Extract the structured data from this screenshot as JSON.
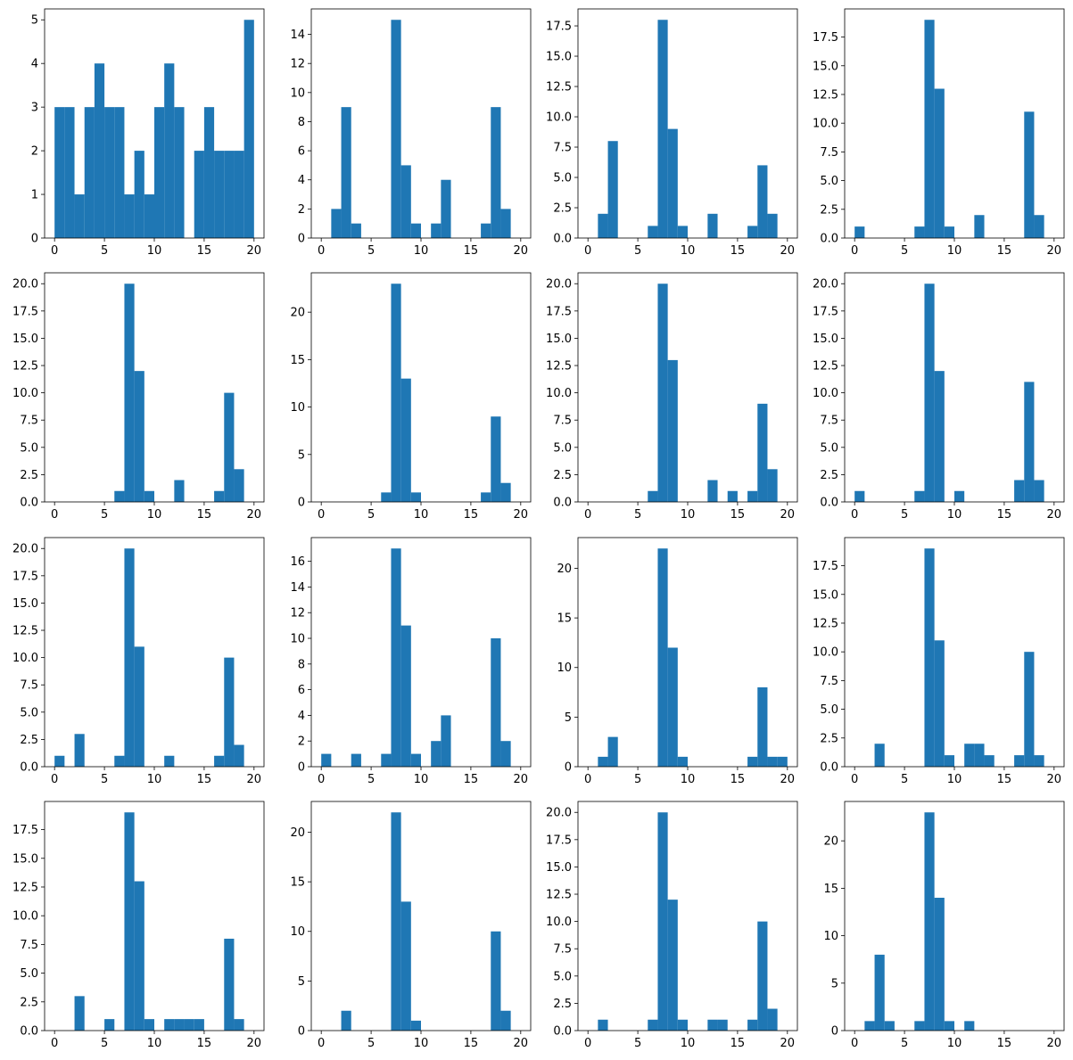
{
  "colors": {
    "bar": "#1f77b4",
    "axis": "#000000",
    "background": "#ffffff"
  },
  "chart_data": [
    {
      "type": "bar",
      "bins": {
        "start": 0,
        "width": 1,
        "count": 20
      },
      "values": [
        3,
        3,
        1,
        3,
        4,
        3,
        3,
        1,
        2,
        1,
        3,
        4,
        3,
        0,
        2,
        3,
        2,
        2,
        2,
        5
      ],
      "xlim": [
        -1,
        21
      ],
      "ylim": [
        0,
        5.25
      ],
      "xticks": [
        0,
        5,
        10,
        15,
        20
      ],
      "yticks": [
        0,
        1,
        2,
        3,
        4,
        5
      ],
      "xtick_labels": [
        "0",
        "5",
        "10",
        "15",
        "20"
      ],
      "ytick_labels": [
        "0",
        "1",
        "2",
        "3",
        "4",
        "5"
      ]
    },
    {
      "type": "bar",
      "bins": {
        "start": 0,
        "width": 1,
        "count": 20
      },
      "values": [
        0,
        2,
        9,
        1,
        0,
        0,
        0,
        15,
        5,
        1,
        0,
        1,
        4,
        0,
        0,
        0,
        1,
        9,
        2,
        0
      ],
      "xlim": [
        -1,
        21
      ],
      "ylim": [
        0,
        15.75
      ],
      "xticks": [
        0,
        5,
        10,
        15,
        20
      ],
      "yticks": [
        0,
        2,
        4,
        6,
        8,
        10,
        12,
        14
      ],
      "xtick_labels": [
        "0",
        "5",
        "10",
        "15",
        "20"
      ],
      "ytick_labels": [
        "0",
        "2",
        "4",
        "6",
        "8",
        "10",
        "12",
        "14"
      ]
    },
    {
      "type": "bar",
      "bins": {
        "start": 0,
        "width": 1,
        "count": 20
      },
      "values": [
        0,
        2,
        8,
        0,
        0,
        0,
        1,
        18,
        9,
        1,
        0,
        0,
        2,
        0,
        0,
        0,
        1,
        6,
        2,
        0
      ],
      "xlim": [
        -1,
        21
      ],
      "ylim": [
        0,
        18.9
      ],
      "xticks": [
        0,
        5,
        10,
        15,
        20
      ],
      "yticks": [
        0,
        2.5,
        5,
        7.5,
        10,
        12.5,
        15,
        17.5
      ],
      "xtick_labels": [
        "0",
        "5",
        "10",
        "15",
        "20"
      ],
      "ytick_labels": [
        "0.0",
        "2.5",
        "5.0",
        "7.5",
        "10.0",
        "12.5",
        "15.0",
        "17.5"
      ]
    },
    {
      "type": "bar",
      "bins": {
        "start": 0,
        "width": 1,
        "count": 20
      },
      "values": [
        1,
        0,
        0,
        0,
        0,
        0,
        1,
        19,
        13,
        1,
        0,
        0,
        2,
        0,
        0,
        0,
        0,
        11,
        2,
        0
      ],
      "xlim": [
        -1,
        21
      ],
      "ylim": [
        0,
        19.95
      ],
      "xticks": [
        0,
        5,
        10,
        15,
        20
      ],
      "yticks": [
        0,
        2.5,
        5,
        7.5,
        10,
        12.5,
        15,
        17.5
      ],
      "xtick_labels": [
        "0",
        "5",
        "10",
        "15",
        "20"
      ],
      "ytick_labels": [
        "0.0",
        "2.5",
        "5.0",
        "7.5",
        "10.0",
        "12.5",
        "15.0",
        "17.5"
      ]
    },
    {
      "type": "bar",
      "bins": {
        "start": 0,
        "width": 1,
        "count": 20
      },
      "values": [
        0,
        0,
        0,
        0,
        0,
        0,
        1,
        20,
        12,
        1,
        0,
        0,
        2,
        0,
        0,
        0,
        1,
        10,
        3,
        0
      ],
      "xlim": [
        -1,
        21
      ],
      "ylim": [
        0,
        21
      ],
      "xticks": [
        0,
        5,
        10,
        15,
        20
      ],
      "yticks": [
        0,
        2.5,
        5,
        7.5,
        10,
        12.5,
        15,
        17.5,
        20
      ],
      "xtick_labels": [
        "0",
        "5",
        "10",
        "15",
        "20"
      ],
      "ytick_labels": [
        "0.0",
        "2.5",
        "5.0",
        "7.5",
        "10.0",
        "12.5",
        "15.0",
        "17.5",
        "20.0"
      ]
    },
    {
      "type": "bar",
      "bins": {
        "start": 0,
        "width": 1,
        "count": 20
      },
      "values": [
        0,
        0,
        0,
        0,
        0,
        0,
        1,
        23,
        13,
        1,
        0,
        0,
        0,
        0,
        0,
        0,
        1,
        9,
        2,
        0
      ],
      "xlim": [
        -1,
        21
      ],
      "ylim": [
        0,
        24.15
      ],
      "xticks": [
        0,
        5,
        10,
        15,
        20
      ],
      "yticks": [
        0,
        5,
        10,
        15,
        20
      ],
      "xtick_labels": [
        "0",
        "5",
        "10",
        "15",
        "20"
      ],
      "ytick_labels": [
        "0",
        "5",
        "10",
        "15",
        "20"
      ]
    },
    {
      "type": "bar",
      "bins": {
        "start": 0,
        "width": 1,
        "count": 20
      },
      "values": [
        0,
        0,
        0,
        0,
        0,
        0,
        1,
        20,
        13,
        0,
        0,
        0,
        2,
        0,
        1,
        0,
        1,
        9,
        3,
        0
      ],
      "xlim": [
        -1,
        21
      ],
      "ylim": [
        0,
        21
      ],
      "xticks": [
        0,
        5,
        10,
        15,
        20
      ],
      "yticks": [
        0,
        2.5,
        5,
        7.5,
        10,
        12.5,
        15,
        17.5,
        20
      ],
      "xtick_labels": [
        "0",
        "5",
        "10",
        "15",
        "20"
      ],
      "ytick_labels": [
        "0.0",
        "2.5",
        "5.0",
        "7.5",
        "10.0",
        "12.5",
        "15.0",
        "17.5",
        "20.0"
      ]
    },
    {
      "type": "bar",
      "bins": {
        "start": 0,
        "width": 1,
        "count": 20
      },
      "values": [
        1,
        0,
        0,
        0,
        0,
        0,
        1,
        20,
        12,
        0,
        1,
        0,
        0,
        0,
        0,
        0,
        2,
        11,
        2,
        0
      ],
      "xlim": [
        -1,
        21
      ],
      "ylim": [
        0,
        21
      ],
      "xticks": [
        0,
        5,
        10,
        15,
        20
      ],
      "yticks": [
        0,
        2.5,
        5,
        7.5,
        10,
        12.5,
        15,
        17.5,
        20
      ],
      "xtick_labels": [
        "0",
        "5",
        "10",
        "15",
        "20"
      ],
      "ytick_labels": [
        "0.0",
        "2.5",
        "5.0",
        "7.5",
        "10.0",
        "12.5",
        "15.0",
        "17.5",
        "20.0"
      ]
    },
    {
      "type": "bar",
      "bins": {
        "start": 0,
        "width": 1,
        "count": 20
      },
      "values": [
        1,
        0,
        3,
        0,
        0,
        0,
        1,
        20,
        11,
        0,
        0,
        1,
        0,
        0,
        0,
        0,
        1,
        10,
        2,
        0
      ],
      "xlim": [
        -1,
        21
      ],
      "ylim": [
        0,
        21
      ],
      "xticks": [
        0,
        5,
        10,
        15,
        20
      ],
      "yticks": [
        0,
        2.5,
        5,
        7.5,
        10,
        12.5,
        15,
        17.5,
        20
      ],
      "xtick_labels": [
        "0",
        "5",
        "10",
        "15",
        "20"
      ],
      "ytick_labels": [
        "0.0",
        "2.5",
        "5.0",
        "7.5",
        "10.0",
        "12.5",
        "15.0",
        "17.5",
        "20.0"
      ]
    },
    {
      "type": "bar",
      "bins": {
        "start": 0,
        "width": 1,
        "count": 20
      },
      "values": [
        1,
        0,
        0,
        1,
        0,
        0,
        1,
        17,
        11,
        1,
        0,
        2,
        4,
        0,
        0,
        0,
        0,
        10,
        2,
        0
      ],
      "xlim": [
        -1,
        21
      ],
      "ylim": [
        0,
        17.85
      ],
      "xticks": [
        0,
        5,
        10,
        15,
        20
      ],
      "yticks": [
        0,
        2,
        4,
        6,
        8,
        10,
        12,
        14,
        16
      ],
      "xtick_labels": [
        "0",
        "5",
        "10",
        "15",
        "20"
      ],
      "ytick_labels": [
        "0",
        "2",
        "4",
        "6",
        "8",
        "10",
        "12",
        "14",
        "16"
      ]
    },
    {
      "type": "bar",
      "bins": {
        "start": 0,
        "width": 1,
        "count": 20
      },
      "values": [
        0,
        1,
        3,
        0,
        0,
        0,
        0,
        22,
        12,
        1,
        0,
        0,
        0,
        0,
        0,
        0,
        1,
        8,
        1,
        1
      ],
      "xlim": [
        -1,
        21
      ],
      "ylim": [
        0,
        23.1
      ],
      "xticks": [
        0,
        5,
        10,
        15,
        20
      ],
      "yticks": [
        0,
        5,
        10,
        15,
        20
      ],
      "xtick_labels": [
        "0",
        "5",
        "10",
        "15",
        "20"
      ],
      "ytick_labels": [
        "0",
        "5",
        "10",
        "15",
        "20"
      ]
    },
    {
      "type": "bar",
      "bins": {
        "start": 0,
        "width": 1,
        "count": 20
      },
      "values": [
        0,
        0,
        2,
        0,
        0,
        0,
        0,
        19,
        11,
        1,
        0,
        2,
        2,
        1,
        0,
        0,
        1,
        10,
        1,
        0
      ],
      "xlim": [
        -1,
        21
      ],
      "ylim": [
        0,
        19.95
      ],
      "xticks": [
        0,
        5,
        10,
        15,
        20
      ],
      "yticks": [
        0,
        2.5,
        5,
        7.5,
        10,
        12.5,
        15,
        17.5
      ],
      "xtick_labels": [
        "0",
        "5",
        "10",
        "15",
        "20"
      ],
      "ytick_labels": [
        "0.0",
        "2.5",
        "5.0",
        "7.5",
        "10.0",
        "12.5",
        "15.0",
        "17.5"
      ]
    },
    {
      "type": "bar",
      "bins": {
        "start": 0,
        "width": 1,
        "count": 20
      },
      "values": [
        0,
        0,
        3,
        0,
        0,
        1,
        0,
        19,
        13,
        1,
        0,
        1,
        1,
        1,
        1,
        0,
        0,
        8,
        1,
        0
      ],
      "xlim": [
        -1,
        21
      ],
      "ylim": [
        0,
        19.95
      ],
      "xticks": [
        0,
        5,
        10,
        15,
        20
      ],
      "yticks": [
        0,
        2.5,
        5,
        7.5,
        10,
        12.5,
        15,
        17.5
      ],
      "xtick_labels": [
        "0",
        "5",
        "10",
        "15",
        "20"
      ],
      "ytick_labels": [
        "0.0",
        "2.5",
        "5.0",
        "7.5",
        "10.0",
        "12.5",
        "15.0",
        "17.5"
      ]
    },
    {
      "type": "bar",
      "bins": {
        "start": 0,
        "width": 1,
        "count": 20
      },
      "values": [
        0,
        0,
        2,
        0,
        0,
        0,
        0,
        22,
        13,
        1,
        0,
        0,
        0,
        0,
        0,
        0,
        0,
        10,
        2,
        0
      ],
      "xlim": [
        -1,
        21
      ],
      "ylim": [
        0,
        23.1
      ],
      "xticks": [
        0,
        5,
        10,
        15,
        20
      ],
      "yticks": [
        0,
        5,
        10,
        15,
        20
      ],
      "xtick_labels": [
        "0",
        "5",
        "10",
        "15",
        "20"
      ],
      "ytick_labels": [
        "0",
        "5",
        "10",
        "15",
        "20"
      ]
    },
    {
      "type": "bar",
      "bins": {
        "start": 0,
        "width": 1,
        "count": 20
      },
      "values": [
        0,
        1,
        0,
        0,
        0,
        0,
        1,
        20,
        12,
        1,
        0,
        0,
        1,
        1,
        0,
        0,
        1,
        10,
        2,
        0
      ],
      "xlim": [
        -1,
        21
      ],
      "ylim": [
        0,
        21
      ],
      "xticks": [
        0,
        5,
        10,
        15,
        20
      ],
      "yticks": [
        0,
        2.5,
        5,
        7.5,
        10,
        12.5,
        15,
        17.5,
        20
      ],
      "xtick_labels": [
        "0",
        "5",
        "10",
        "15",
        "20"
      ],
      "ytick_labels": [
        "0.0",
        "2.5",
        "5.0",
        "7.5",
        "10.0",
        "12.5",
        "15.0",
        "17.5",
        "20.0"
      ]
    },
    {
      "type": "bar",
      "bins": {
        "start": 0,
        "width": 1,
        "count": 20
      },
      "values": [
        0,
        1,
        8,
        1,
        0,
        0,
        1,
        23,
        14,
        1,
        0,
        1,
        0,
        0,
        0,
        0,
        0,
        0,
        0,
        0
      ],
      "xlim": [
        -1,
        21
      ],
      "ylim": [
        0,
        24.15
      ],
      "xticks": [
        0,
        5,
        10,
        15,
        20
      ],
      "yticks": [
        0,
        5,
        10,
        15,
        20
      ],
      "xtick_labels": [
        "0",
        "5",
        "10",
        "15",
        "20"
      ],
      "ytick_labels": [
        "0",
        "5",
        "10",
        "15",
        "20"
      ]
    }
  ]
}
